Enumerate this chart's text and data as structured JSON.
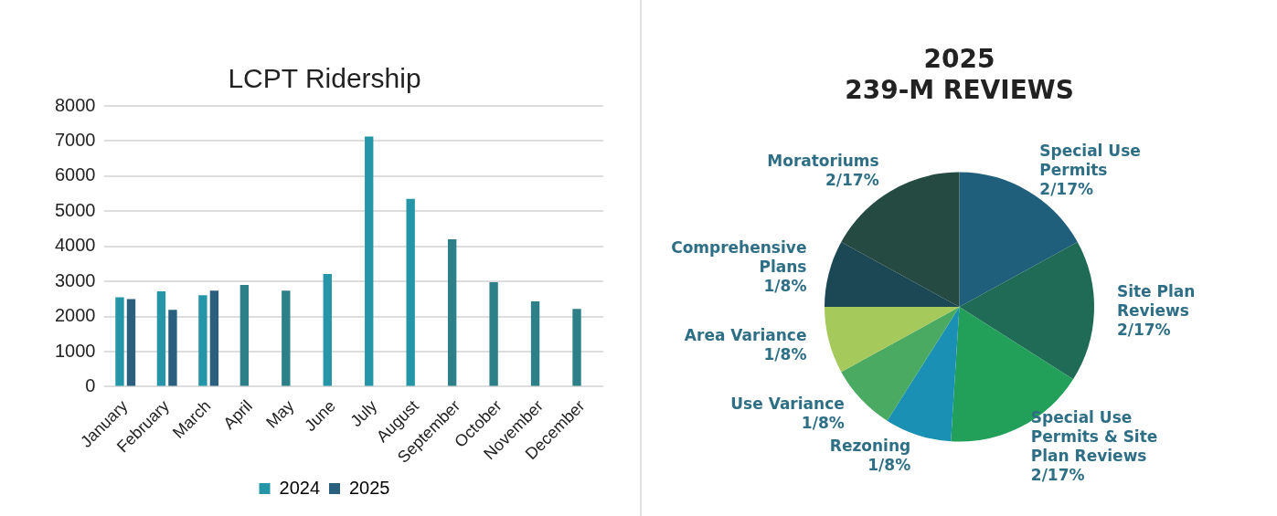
{
  "chart_data": [
    {
      "type": "bar",
      "title": "LCPT Ridership",
      "categories": [
        "January",
        "February",
        "March",
        "April",
        "May",
        "June",
        "July",
        "August",
        "September",
        "October",
        "November",
        "December"
      ],
      "series": [
        {
          "name": "2024",
          "color": "#2596a8",
          "colors": [
            "#2596a8",
            "#2596a8",
            "#2596a8",
            "#2e8088",
            "#2e8088",
            "#2596a8",
            "#2596a8",
            "#2596a8",
            "#2e8088",
            "#2e8088",
            "#2e8088",
            "#2e8088"
          ],
          "values": [
            2550,
            2720,
            2610,
            2900,
            2740,
            3210,
            7130,
            5350,
            4200,
            2980,
            2430,
            2220
          ]
        },
        {
          "name": "2025",
          "color": "#2b5f7e",
          "values": [
            2500,
            2190,
            2740,
            0,
            0,
            0,
            0,
            0,
            0,
            0,
            0,
            0
          ]
        }
      ],
      "ylim": [
        0,
        8000
      ],
      "yticks": [
        0,
        1000,
        2000,
        3000,
        4000,
        5000,
        6000,
        7000,
        8000
      ],
      "grid": "y",
      "legend": "bottom"
    },
    {
      "type": "pie",
      "title": "2025\n239-M REVIEWS",
      "categories": [
        "Special Use Permits",
        "Site Plan Reviews",
        "Special Use Permits & Site Plan Reviews",
        "Rezoning",
        "Use Variance",
        "Area Variance",
        "Comprehensive Plans",
        "Moratoriums"
      ],
      "values": [
        17,
        17,
        17,
        8,
        8,
        8,
        8,
        17
      ],
      "value_labels": [
        "2/17%",
        "2/17%",
        "2/17%",
        "1/8%",
        "1/8%",
        "1/8%",
        "1/8%",
        "2/17%"
      ],
      "colors": [
        "#1f5f7c",
        "#1f6b55",
        "#22a05a",
        "#1a90b5",
        "#4aaa62",
        "#a6c95c",
        "#1c4856",
        "#244a42"
      ]
    }
  ]
}
